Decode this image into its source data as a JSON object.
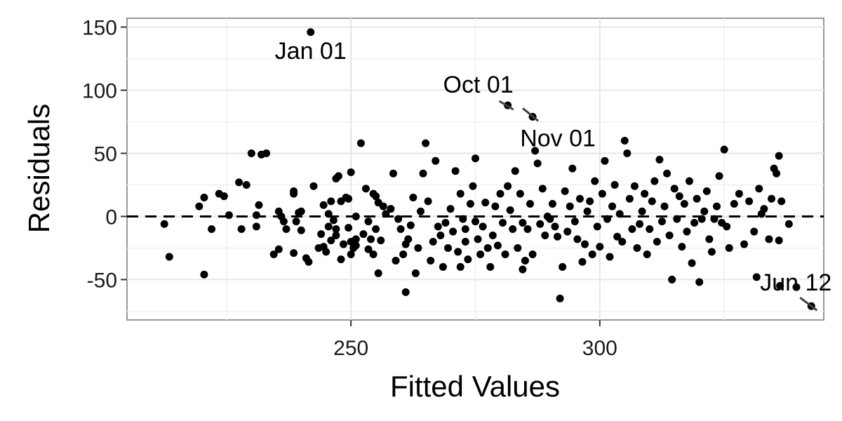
{
  "chart_data": {
    "type": "scatter",
    "title": "",
    "xlabel": "Fitted Values",
    "ylabel": "Residuals",
    "xlim": [
      205,
      345
    ],
    "ylim": [
      -82,
      157
    ],
    "x_ticks": [
      250,
      300
    ],
    "x_tick_labels": [
      "250",
      "300"
    ],
    "y_ticks": [
      -50,
      0,
      50,
      100,
      150
    ],
    "y_tick_labels": [
      "-50",
      "0",
      "50",
      "100",
      "150"
    ],
    "grid": true,
    "reference_line": {
      "y": 0,
      "style": "dashed"
    },
    "annotations": [
      {
        "label": "Jan 01",
        "x": 241.9,
        "y": 146
      },
      {
        "label": "Oct 01",
        "x": 281.5,
        "y": 88
      },
      {
        "label": "Nov 01",
        "x": 286.5,
        "y": 79
      },
      {
        "label": "Jun 12",
        "x": 342.5,
        "y": -71
      }
    ],
    "points": [
      [
        241.9,
        146
      ],
      [
        281.5,
        88
      ],
      [
        286.5,
        79
      ],
      [
        342.5,
        -71
      ],
      [
        212.5,
        -6
      ],
      [
        213.5,
        -32
      ],
      [
        219.5,
        8
      ],
      [
        220.5,
        15
      ],
      [
        220.5,
        -46
      ],
      [
        222,
        -10
      ],
      [
        223.5,
        18
      ],
      [
        224.5,
        16
      ],
      [
        225.5,
        1
      ],
      [
        227.5,
        27
      ],
      [
        228,
        -10
      ],
      [
        229,
        25
      ],
      [
        230,
        50
      ],
      [
        231,
        1
      ],
      [
        231,
        -8
      ],
      [
        231.5,
        9
      ],
      [
        232,
        49
      ],
      [
        233,
        50
      ],
      [
        234.5,
        -30
      ],
      [
        235.5,
        -26
      ],
      [
        235.5,
        4
      ],
      [
        236,
        0
      ],
      [
        236.5,
        -4
      ],
      [
        237,
        -10
      ],
      [
        238.5,
        20
      ],
      [
        238.5,
        18
      ],
      [
        238.5,
        -29
      ],
      [
        239,
        -4
      ],
      [
        239.5,
        3
      ],
      [
        240,
        -11
      ],
      [
        240,
        4
      ],
      [
        241,
        -33
      ],
      [
        241.5,
        -36
      ],
      [
        242.5,
        24
      ],
      [
        243.5,
        -25
      ],
      [
        244,
        -14
      ],
      [
        244.5,
        9
      ],
      [
        244.5,
        -24
      ],
      [
        245,
        -28
      ],
      [
        245.5,
        2
      ],
      [
        245.5,
        -8
      ],
      [
        246,
        -19
      ],
      [
        246,
        12
      ],
      [
        246.5,
        -3
      ],
      [
        247,
        -10
      ],
      [
        247,
        30
      ],
      [
        247,
        -15
      ],
      [
        247.5,
        32
      ],
      [
        248,
        -34
      ],
      [
        248,
        12
      ],
      [
        248.5,
        -22
      ],
      [
        249,
        15
      ],
      [
        249.5,
        -9
      ],
      [
        249.5,
        14
      ],
      [
        250,
        -20
      ],
      [
        250,
        -30
      ],
      [
        250.5,
        -25
      ],
      [
        250,
        35
      ],
      [
        251,
        0
      ],
      [
        251,
        -23
      ],
      [
        251,
        -18
      ],
      [
        252,
        58
      ],
      [
        252.5,
        -14
      ],
      [
        253,
        22
      ],
      [
        253.5,
        -4
      ],
      [
        253.5,
        -26
      ],
      [
        254,
        -18
      ],
      [
        254.5,
        -30
      ],
      [
        254.5,
        18
      ],
      [
        255,
        -10
      ],
      [
        255,
        16
      ],
      [
        255.5,
        11
      ],
      [
        255.5,
        -45
      ],
      [
        256,
        -19
      ],
      [
        256.5,
        8
      ],
      [
        257,
        2
      ],
      [
        258,
        6
      ],
      [
        258.5,
        34
      ],
      [
        259,
        -35
      ],
      [
        259.5,
        -2
      ],
      [
        260,
        -10
      ],
      [
        260.5,
        -30
      ],
      [
        261,
        -22
      ],
      [
        261,
        -60
      ],
      [
        261.5,
        -18
      ],
      [
        262,
        -7
      ],
      [
        262.5,
        15
      ],
      [
        263,
        -45
      ],
      [
        263.5,
        -25
      ],
      [
        264,
        4
      ],
      [
        264.5,
        34
      ],
      [
        265,
        58
      ],
      [
        265.5,
        12
      ],
      [
        266,
        -35
      ],
      [
        266.5,
        -20
      ],
      [
        267,
        44
      ],
      [
        267.5,
        -8
      ],
      [
        268,
        -15
      ],
      [
        268.5,
        -40
      ],
      [
        269,
        -5
      ],
      [
        269.5,
        -25
      ],
      [
        270,
        6
      ],
      [
        270.5,
        -12
      ],
      [
        271,
        36
      ],
      [
        271.5,
        -28
      ],
      [
        272,
        -40
      ],
      [
        272,
        18
      ],
      [
        272.5,
        -2
      ],
      [
        273,
        -10
      ],
      [
        273,
        -20
      ],
      [
        273.5,
        -34
      ],
      [
        274,
        10
      ],
      [
        274.5,
        24
      ],
      [
        275,
        46
      ],
      [
        275,
        -4
      ],
      [
        275.5,
        -18
      ],
      [
        276,
        -30
      ],
      [
        276.5,
        -8
      ],
      [
        277,
        11
      ],
      [
        277.5,
        -25
      ],
      [
        278,
        -40
      ],
      [
        278.5,
        -15
      ],
      [
        279,
        8
      ],
      [
        279.5,
        -23
      ],
      [
        280,
        18
      ],
      [
        280.5,
        -5
      ],
      [
        281,
        -30
      ],
      [
        281.5,
        24
      ],
      [
        282,
        5
      ],
      [
        282.5,
        -10
      ],
      [
        283,
        36
      ],
      [
        283.5,
        -25
      ],
      [
        284,
        18
      ],
      [
        284.5,
        -5
      ],
      [
        284.5,
        -42
      ],
      [
        285,
        -35
      ],
      [
        285.5,
        -10
      ],
      [
        286,
        10
      ],
      [
        286.5,
        -30
      ],
      [
        287,
        52
      ],
      [
        287.5,
        42
      ],
      [
        288,
        -6
      ],
      [
        288.5,
        22
      ],
      [
        289,
        -15
      ],
      [
        289.5,
        0
      ],
      [
        290,
        -2
      ],
      [
        290.5,
        10
      ],
      [
        291,
        -8
      ],
      [
        291.5,
        -16
      ],
      [
        292,
        -65
      ],
      [
        292.5,
        -40
      ],
      [
        293,
        20
      ],
      [
        293.5,
        -12
      ],
      [
        294,
        8
      ],
      [
        294.5,
        38
      ],
      [
        295,
        -4
      ],
      [
        295.5,
        -18
      ],
      [
        296,
        14
      ],
      [
        296.5,
        -36
      ],
      [
        297,
        -22
      ],
      [
        297.5,
        4
      ],
      [
        298,
        12
      ],
      [
        298.5,
        -30
      ],
      [
        299,
        28
      ],
      [
        299.5,
        -8
      ],
      [
        300,
        -24
      ],
      [
        300.5,
        18
      ],
      [
        301,
        44
      ],
      [
        301.5,
        -2
      ],
      [
        302,
        -32
      ],
      [
        302.5,
        8
      ],
      [
        303,
        25
      ],
      [
        303.5,
        -16
      ],
      [
        304,
        2
      ],
      [
        304.5,
        -20
      ],
      [
        305,
        60
      ],
      [
        305.5,
        50
      ],
      [
        306,
        14
      ],
      [
        306.5,
        -10
      ],
      [
        307,
        24
      ],
      [
        307.5,
        -25
      ],
      [
        308,
        -6
      ],
      [
        308.5,
        4
      ],
      [
        309,
        18
      ],
      [
        309.5,
        -30
      ],
      [
        310,
        -10
      ],
      [
        310.5,
        12
      ],
      [
        311,
        28
      ],
      [
        311.5,
        -20
      ],
      [
        312,
        45
      ],
      [
        312.5,
        -4
      ],
      [
        313,
        8
      ],
      [
        313.5,
        34
      ],
      [
        314,
        -15
      ],
      [
        314.5,
        -50
      ],
      [
        315,
        22
      ],
      [
        315.5,
        -2
      ],
      [
        316,
        16
      ],
      [
        316.5,
        -24
      ],
      [
        317,
        10
      ],
      [
        317.5,
        -12
      ],
      [
        318,
        28
      ],
      [
        318.5,
        -37
      ],
      [
        319,
        -5
      ],
      [
        319.5,
        14
      ],
      [
        320,
        -52
      ],
      [
        320.5,
        -2
      ],
      [
        321,
        4
      ],
      [
        321.5,
        20
      ],
      [
        322,
        -18
      ],
      [
        322.5,
        -28
      ],
      [
        323,
        -2
      ],
      [
        323.5,
        8
      ],
      [
        324,
        32
      ],
      [
        324.5,
        -5
      ],
      [
        325,
        53
      ],
      [
        325.5,
        -8
      ],
      [
        326,
        -25
      ],
      [
        327,
        10
      ],
      [
        328,
        18
      ],
      [
        329,
        -22
      ],
      [
        330,
        12
      ],
      [
        331,
        -12
      ],
      [
        331.5,
        -48
      ],
      [
        332,
        22
      ],
      [
        332.5,
        2
      ],
      [
        333,
        6
      ],
      [
        334,
        -18
      ],
      [
        334.5,
        14
      ],
      [
        335,
        38
      ],
      [
        335.5,
        34
      ],
      [
        336,
        48
      ],
      [
        336.5,
        12
      ],
      [
        336,
        -19
      ],
      [
        338,
        -6
      ],
      [
        339.5,
        -56
      ],
      [
        336.2,
        -55
      ]
    ]
  }
}
